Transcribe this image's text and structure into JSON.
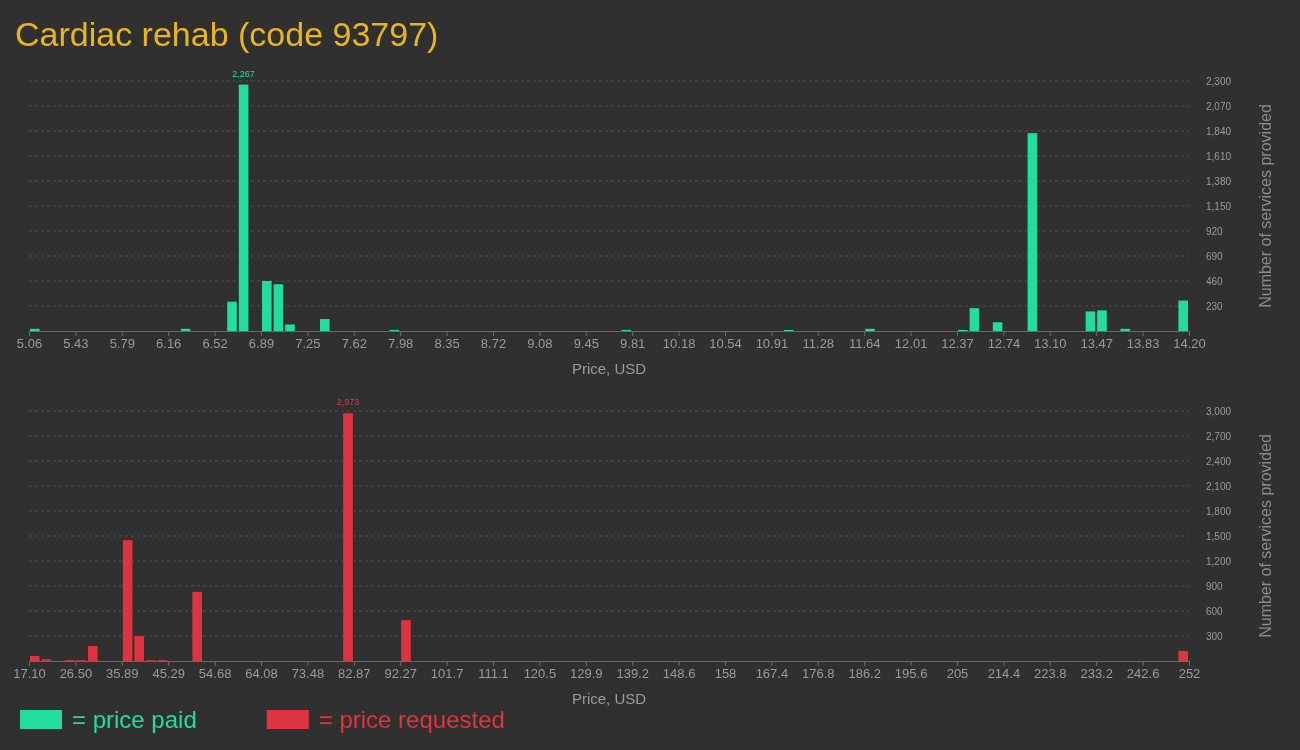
{
  "chart_data": [
    {
      "type": "histogram",
      "title": "Cardiac rehab (code 93797)",
      "xlabel": "Price, USD",
      "ylabel": "Number of services provided",
      "grid": "y",
      "legend": "bottom left",
      "bins": [
        5.06,
        5.1514,
        5.2428,
        5.3342,
        5.4256,
        5.517,
        5.6084,
        5.6998,
        5.7912,
        5.8826,
        5.974,
        6.0654,
        6.1568,
        6.2482,
        6.3396,
        6.431,
        6.5224,
        6.6138,
        6.7052,
        6.7966,
        6.888,
        6.9794,
        7.0708,
        7.1622,
        7.2536,
        7.345,
        7.4364,
        7.5278,
        7.6192,
        7.7106,
        7.802,
        7.8934,
        7.9848,
        8.0762,
        8.1676,
        8.259,
        8.3504,
        8.4418,
        8.5332,
        8.6246,
        8.716,
        8.8074,
        8.8988,
        8.9902,
        9.0816,
        9.173,
        9.2644,
        9.3558,
        9.4472,
        9.5386,
        9.63,
        9.7214,
        9.8128,
        9.9042,
        9.9956,
        10.087,
        10.1784,
        10.2698,
        10.3612,
        10.4526,
        10.544,
        10.6354,
        10.7268,
        10.8182,
        10.9096,
        11.001,
        11.0924,
        11.1838,
        11.2752,
        11.3666,
        11.458,
        11.5494,
        11.6408,
        11.7322,
        11.8236,
        11.915,
        12.0064,
        12.0978,
        12.1892,
        12.2806,
        12.372,
        12.4634,
        12.5548,
        12.6462,
        12.7376,
        12.829,
        12.9204,
        13.0118,
        13.1032,
        13.1946,
        13.286,
        13.3774,
        13.4688,
        13.5602,
        13.6516,
        13.743,
        13.8344,
        13.9258,
        14.0172,
        14.1086,
        14.2
      ],
      "series": [
        {
          "name": "= price paid",
          "color": "#22dd9f",
          "values": [
            20,
            0,
            0,
            0,
            0,
            0,
            0,
            0,
            0,
            0,
            0,
            0,
            0,
            20,
            0,
            0,
            0,
            270,
            2267,
            0,
            460,
            430,
            60,
            0,
            0,
            110,
            0,
            0,
            0,
            0,
            0,
            10,
            0,
            0,
            0,
            0,
            0,
            0,
            0,
            0,
            0,
            0,
            0,
            0,
            0,
            0,
            0,
            0,
            0,
            0,
            0,
            10,
            0,
            0,
            0,
            0,
            0,
            0,
            0,
            0,
            0,
            0,
            0,
            0,
            0,
            10,
            0,
            0,
            0,
            0,
            0,
            0,
            20,
            0,
            0,
            0,
            0,
            0,
            0,
            0,
            10,
            210,
            0,
            80,
            0,
            0,
            1820,
            0,
            0,
            0,
            0,
            180,
            190,
            0,
            20,
            0,
            0,
            0,
            0,
            280
          ],
          "value_labels": [
            null,
            null,
            null,
            null,
            null,
            null,
            null,
            null,
            null,
            null,
            null,
            null,
            null,
            null,
            null,
            null,
            null,
            null,
            "2,267",
            null,
            null,
            null,
            null,
            null,
            null,
            null,
            null,
            null,
            null,
            null,
            null,
            null,
            null,
            null,
            null,
            null,
            null,
            null,
            null,
            null,
            null,
            null,
            null,
            null,
            null,
            null,
            null,
            null,
            null,
            null,
            null,
            null,
            null,
            null,
            null,
            null,
            null,
            null,
            null,
            null,
            null,
            null,
            null,
            null,
            null,
            null,
            null,
            null,
            null,
            null,
            null,
            null,
            null,
            null,
            null,
            null,
            null,
            null,
            null,
            null,
            null,
            null,
            null,
            null,
            null,
            null,
            null,
            null,
            null,
            null,
            null,
            null,
            null,
            null,
            null,
            null,
            null,
            null,
            null,
            null
          ]
        }
      ],
      "xlim": [
        5.06,
        14.2
      ],
      "xticks": [
        {
          "value": 5.06,
          "label": "5.06"
        },
        {
          "value": 5.4256,
          "label": "5.43"
        },
        {
          "value": 5.7912,
          "label": "5.79"
        },
        {
          "value": 6.1568,
          "label": "6.16"
        },
        {
          "value": 6.5224,
          "label": "6.52"
        },
        {
          "value": 6.888,
          "label": "6.89"
        },
        {
          "value": 7.2536,
          "label": "7.25"
        },
        {
          "value": 7.6192,
          "label": "7.62"
        },
        {
          "value": 7.9848,
          "label": "7.98"
        },
        {
          "value": 8.3504,
          "label": "8.35"
        },
        {
          "value": 8.716,
          "label": "8.72"
        },
        {
          "value": 9.0816,
          "label": "9.08"
        },
        {
          "value": 9.4472,
          "label": "9.45"
        },
        {
          "value": 9.8128,
          "label": "9.81"
        },
        {
          "value": 10.1784,
          "label": "10.18"
        },
        {
          "value": 10.544,
          "label": "10.54"
        },
        {
          "value": 10.9096,
          "label": "10.91"
        },
        {
          "value": 11.2752,
          "label": "11.28"
        },
        {
          "value": 11.6408,
          "label": "11.64"
        },
        {
          "value": 12.0064,
          "label": "12.01"
        },
        {
          "value": 12.372,
          "label": "12.37"
        },
        {
          "value": 12.7376,
          "label": "12.74"
        },
        {
          "value": 13.1032,
          "label": "13.10"
        },
        {
          "value": 13.4688,
          "label": "13.47"
        },
        {
          "value": 13.8344,
          "label": "13.83"
        },
        {
          "value": 14.2,
          "label": "14.20"
        }
      ],
      "ylim": [
        0,
        2300
      ],
      "yticks": [
        230,
        460,
        690,
        920,
        {
          "value": 1150,
          "label": "1,150"
        },
        {
          "value": 1380,
          "label": "1,380"
        },
        {
          "value": 1610,
          "label": "1,610"
        },
        {
          "value": 1840,
          "label": "1,840"
        },
        {
          "value": 2070,
          "label": "2,070"
        },
        {
          "value": 2300,
          "label": "2,300"
        }
      ]
    },
    {
      "type": "histogram",
      "xlabel": "Price, USD",
      "ylabel": "Number of services provided",
      "grid": "y",
      "legend": "bottom left",
      "bins": [
        17.1,
        19.449,
        21.798,
        24.147,
        26.496,
        28.845,
        31.194,
        33.543,
        35.892,
        38.241,
        40.59,
        42.939,
        45.288,
        47.637,
        49.986,
        52.335,
        54.684,
        57.033,
        59.382,
        61.731,
        64.08,
        66.429,
        68.778,
        71.127,
        73.476,
        75.825,
        78.174,
        80.523,
        82.872,
        85.221,
        87.57,
        89.919,
        92.268,
        94.617,
        96.966,
        99.315,
        101.664,
        104.013,
        106.362,
        108.711,
        111.06,
        113.409,
        115.758,
        118.107,
        120.456,
        122.805,
        125.154,
        127.503,
        129.852,
        132.201,
        134.55,
        136.899,
        139.248,
        141.597,
        143.946,
        146.295,
        148.644,
        150.993,
        153.342,
        155.691,
        158.04,
        160.389,
        162.738,
        165.087,
        167.436,
        169.785,
        172.134,
        174.483,
        176.832,
        179.181,
        181.53,
        183.879,
        186.228,
        188.577,
        190.926,
        193.275,
        195.624,
        197.973,
        200.322,
        202.671,
        205.02,
        207.369,
        209.718,
        212.067,
        214.416,
        216.765,
        219.114,
        221.463,
        223.812,
        226.161,
        228.51,
        230.859,
        233.208,
        235.557,
        237.906,
        240.255,
        242.604,
        244.953,
        247.302,
        249.651,
        252
      ],
      "series": [
        {
          "name": "= price requested",
          "color": "#e03341",
          "values": [
            60,
            20,
            0,
            10,
            10,
            180,
            0,
            0,
            1450,
            300,
            10,
            10,
            0,
            0,
            830,
            0,
            0,
            0,
            0,
            0,
            0,
            0,
            0,
            0,
            0,
            0,
            0,
            2973,
            0,
            0,
            0,
            0,
            490,
            0,
            0,
            0,
            0,
            0,
            0,
            0,
            0,
            0,
            0,
            0,
            0,
            0,
            0,
            0,
            0,
            0,
            0,
            0,
            0,
            0,
            0,
            0,
            0,
            0,
            0,
            0,
            0,
            0,
            0,
            0,
            0,
            0,
            0,
            0,
            0,
            0,
            0,
            0,
            0,
            0,
            0,
            0,
            0,
            0,
            0,
            0,
            0,
            0,
            0,
            0,
            0,
            0,
            0,
            0,
            0,
            0,
            0,
            0,
            0,
            0,
            0,
            0,
            0,
            0,
            0,
            120
          ],
          "value_labels": [
            null,
            null,
            null,
            null,
            null,
            null,
            null,
            null,
            null,
            null,
            null,
            null,
            null,
            null,
            null,
            null,
            null,
            null,
            null,
            null,
            null,
            null,
            null,
            null,
            null,
            null,
            null,
            "2,973",
            null,
            null,
            null,
            null,
            null,
            null,
            null,
            null,
            null,
            null,
            null,
            null,
            null,
            null,
            null,
            null,
            null,
            null,
            null,
            null,
            null,
            null,
            null,
            null,
            null,
            null,
            null,
            null,
            null,
            null,
            null,
            null,
            null,
            null,
            null,
            null,
            null,
            null,
            null,
            null,
            null,
            null,
            null,
            null,
            null,
            null,
            null,
            null,
            null,
            null,
            null,
            null,
            null,
            null,
            null,
            null,
            null,
            null,
            null,
            null,
            null,
            null,
            null,
            null,
            null,
            null,
            null,
            null,
            null,
            null,
            null,
            null
          ]
        }
      ],
      "xlim": [
        17.1,
        252
      ],
      "xticks": [
        {
          "value": 17.1,
          "label": "17.10"
        },
        {
          "value": 26.496,
          "label": "26.50"
        },
        {
          "value": 35.892,
          "label": "35.89"
        },
        {
          "value": 45.288,
          "label": "45.29"
        },
        {
          "value": 54.684,
          "label": "54.68"
        },
        {
          "value": 64.08,
          "label": "64.08"
        },
        {
          "value": 73.476,
          "label": "73.48"
        },
        {
          "value": 82.872,
          "label": "82.87"
        },
        {
          "value": 92.268,
          "label": "92.27"
        },
        {
          "value": 101.664,
          "label": "101.7"
        },
        {
          "value": 111.06,
          "label": "111.1"
        },
        {
          "value": 120.456,
          "label": "120.5"
        },
        {
          "value": 129.852,
          "label": "129.9"
        },
        {
          "value": 139.248,
          "label": "139.2"
        },
        {
          "value": 148.644,
          "label": "148.6"
        },
        {
          "value": 158.04,
          "label": "158"
        },
        {
          "value": 167.436,
          "label": "167.4"
        },
        {
          "value": 176.832,
          "label": "176.8"
        },
        {
          "value": 186.228,
          "label": "186.2"
        },
        {
          "value": 195.624,
          "label": "195.6"
        },
        {
          "value": 205.02,
          "label": "205"
        },
        {
          "value": 214.416,
          "label": "214.4"
        },
        {
          "value": 223.812,
          "label": "223.8"
        },
        {
          "value": 233.208,
          "label": "233.2"
        },
        {
          "value": 242.604,
          "label": "242.6"
        },
        {
          "value": 252,
          "label": "252"
        }
      ],
      "ylim": [
        0,
        3000
      ],
      "yticks": [
        300,
        600,
        900,
        {
          "value": 1200,
          "label": "1,200"
        },
        {
          "value": 1500,
          "label": "1,500"
        },
        {
          "value": 1800,
          "label": "1,800"
        },
        {
          "value": 2100,
          "label": "2,100"
        },
        {
          "value": 2400,
          "label": "2,400"
        },
        {
          "value": 2700,
          "label": "2,700"
        },
        {
          "value": 3000,
          "label": "3,000"
        }
      ]
    }
  ]
}
